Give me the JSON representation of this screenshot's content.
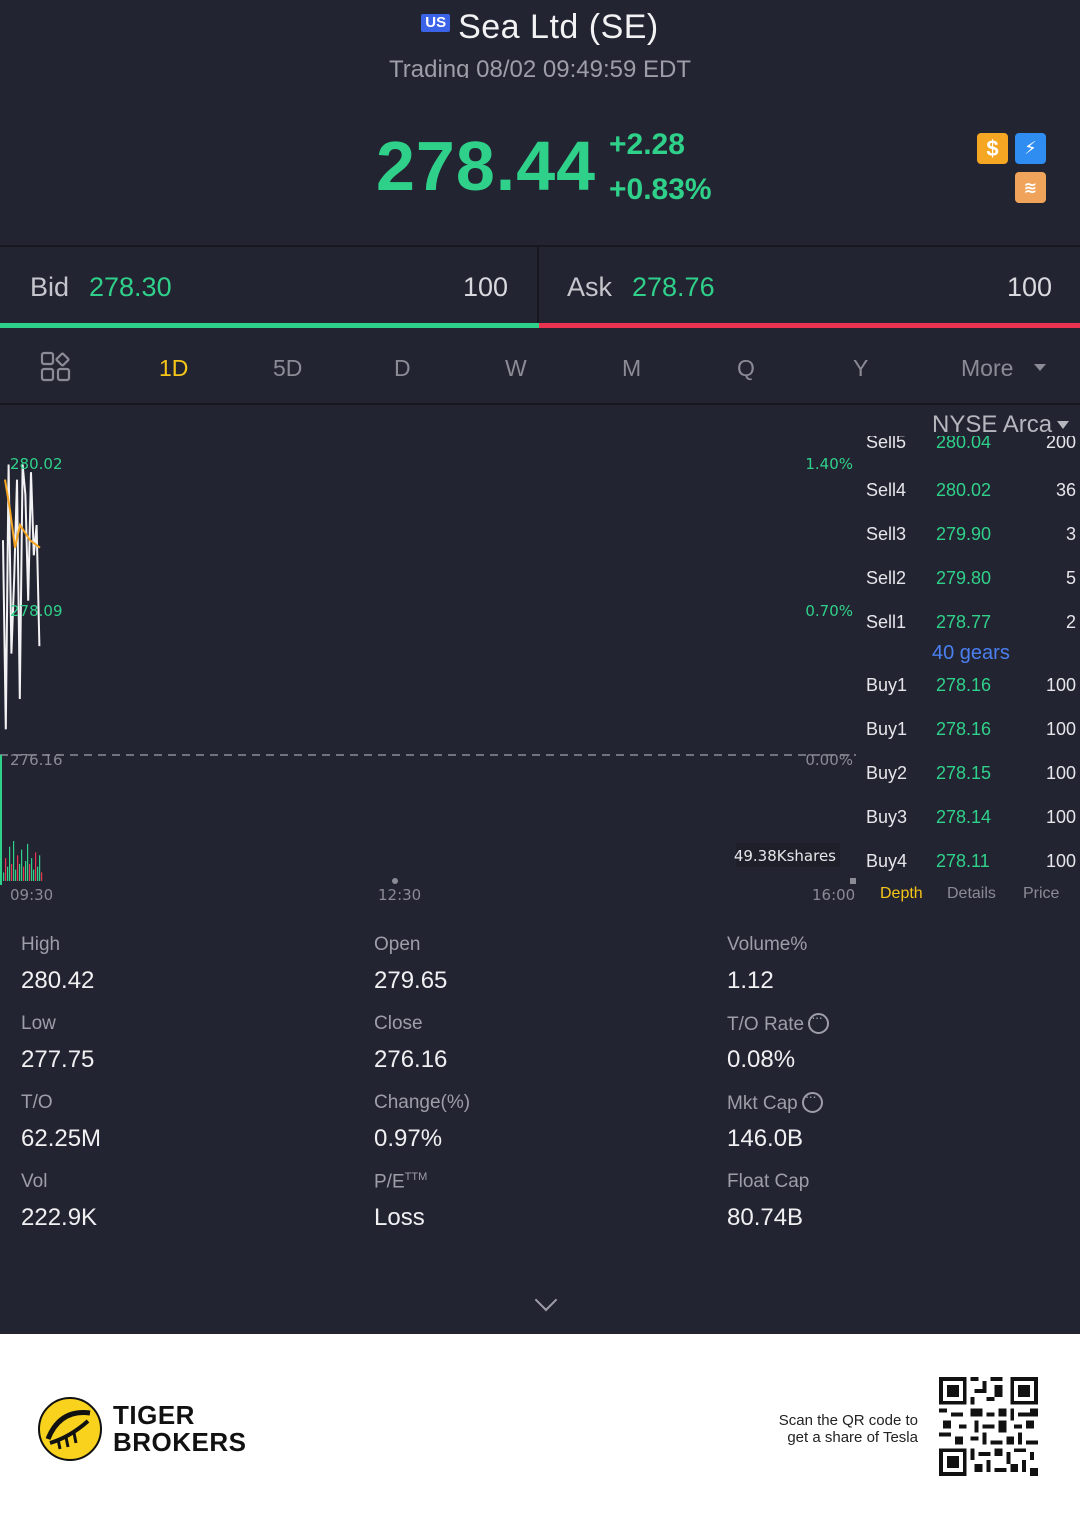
{
  "header": {
    "market_badge": "US",
    "title": "Sea Ltd (SE)",
    "subtitle": "Trading 08/02 09:49:59 EDT",
    "price": "278.44",
    "change_abs": "+2.28",
    "change_pct": "+0.83%",
    "icons": [
      "dollar-icon",
      "flash-icon",
      "stack-icon"
    ],
    "icon_glyphs": {
      "dollar": "$",
      "flash": "⚡",
      "stack": "≋"
    }
  },
  "quote": {
    "bid_label": "Bid",
    "bid_price": "278.30",
    "bid_qty": "100",
    "ask_label": "Ask",
    "ask_price": "278.76",
    "ask_qty": "100"
  },
  "tabs": [
    {
      "label": "1D",
      "active": true
    },
    {
      "label": "5D"
    },
    {
      "label": "D"
    },
    {
      "label": "W"
    },
    {
      "label": "M"
    },
    {
      "label": "Q"
    },
    {
      "label": "Y"
    },
    {
      "label": "More"
    }
  ],
  "chart": {
    "y_high": "280.02",
    "y_mid": "278.09",
    "y_base": "276.16",
    "pct_high": "1.40%",
    "pct_mid": "0.70%",
    "pct_base": "0.00%",
    "volume_label": "49.38Kshares",
    "x_labels": [
      "09:30",
      "12:30",
      "16:00"
    ]
  },
  "chart_data": {
    "type": "line",
    "x_labels": [
      "09:30",
      "12:30",
      "16:00"
    ],
    "ylim": [
      276.16,
      280.02
    ],
    "series": [
      {
        "values": [
          279.0,
          276.5,
          280.0,
          277.5,
          278.5,
          279.8,
          276.9,
          280.0,
          279.6,
          278.2,
          279.9,
          278.8,
          279.2,
          277.6
        ]
      },
      {
        "values": [
          279.8,
          279.4,
          278.9,
          279.2,
          279.1,
          279.0,
          278.95,
          278.9
        ]
      }
    ],
    "volume": [
      3,
      8,
      5,
      12,
      6,
      14,
      4,
      9,
      6,
      11,
      5,
      7,
      13,
      6,
      8,
      4,
      10,
      5,
      9,
      3
    ]
  },
  "order_book": {
    "exchange": "NYSE Arca",
    "sell_partial": {
      "name": "Sell5",
      "price": "280.04",
      "qty": "200"
    },
    "sells": [
      {
        "name": "Sell4",
        "price": "280.02",
        "qty": "36"
      },
      {
        "name": "Sell3",
        "price": "279.90",
        "qty": "3"
      },
      {
        "name": "Sell2",
        "price": "279.80",
        "qty": "5"
      },
      {
        "name": "Sell1",
        "price": "278.77",
        "qty": "2"
      }
    ],
    "gears": "40 gears",
    "buys": [
      {
        "name": "Buy1",
        "price": "278.16",
        "qty": "100"
      },
      {
        "name": "Buy1",
        "price": "278.16",
        "qty": "100"
      },
      {
        "name": "Buy2",
        "price": "278.15",
        "qty": "100"
      },
      {
        "name": "Buy3",
        "price": "278.14",
        "qty": "100"
      },
      {
        "name": "Buy4",
        "price": "278.11",
        "qty": "100"
      }
    ],
    "tabs": [
      "Depth",
      "Details",
      "Price"
    ]
  },
  "stats": {
    "high_label": "High",
    "high": "280.42",
    "open_label": "Open",
    "open": "279.65",
    "volpct_label": "Volume%",
    "volpct": "1.12",
    "low_label": "Low",
    "low": "277.75",
    "close_label": "Close",
    "close": "276.16",
    "torate_label": "T/O Rate",
    "torate": "0.08%",
    "to_label": "T/O",
    "to": "62.25M",
    "change_label": "Change(%)",
    "change": "0.97%",
    "mktcap_label": "Mkt Cap",
    "mktcap": "146.0B",
    "vol_label": "Vol",
    "vol": "222.9K",
    "pe_label": "P/E",
    "pe_sup": "TTM",
    "pe": "Loss",
    "floatcap_label": "Float Cap",
    "floatcap": "80.74B"
  },
  "footer": {
    "brand_line1": "TIGER",
    "brand_line2": "BROKERS",
    "scan_line1": "Scan the QR code to",
    "scan_line2": "get a share of Tesla"
  },
  "colors": {
    "up": "#2fd18a",
    "down": "#ea3350",
    "active_tab": "#f5c518",
    "bg": "#232431"
  }
}
